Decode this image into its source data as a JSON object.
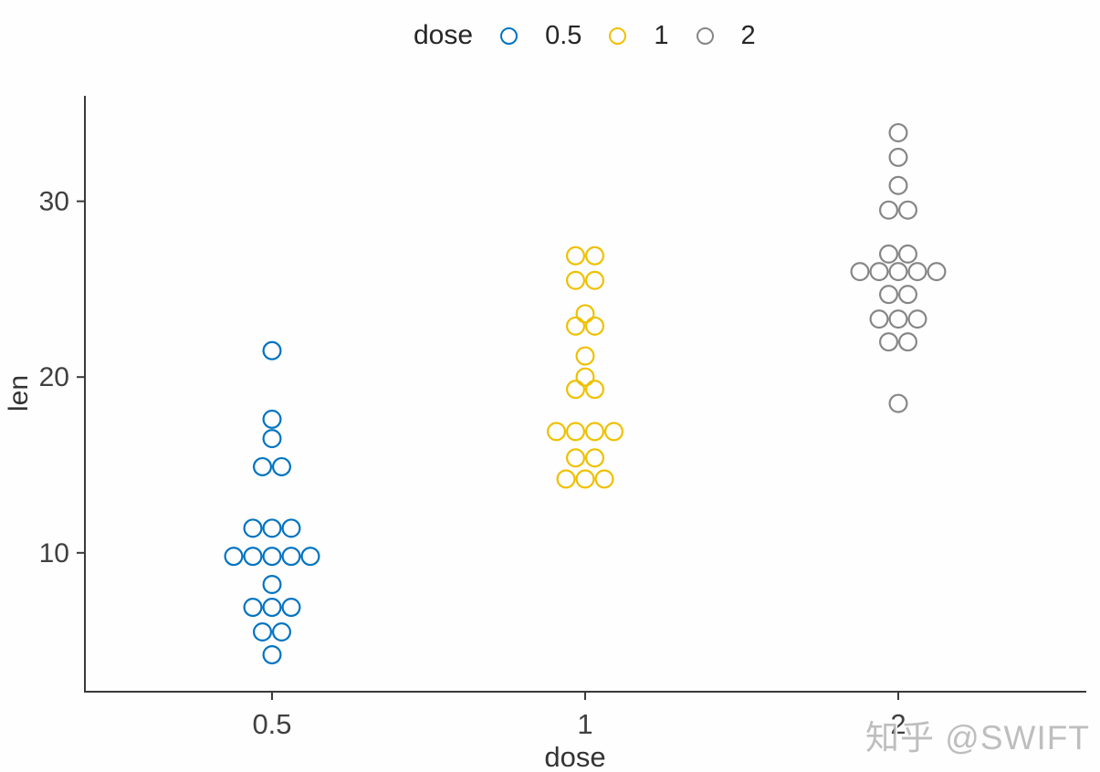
{
  "watermark": "知乎 @SWIFT",
  "legend": {
    "title": "dose",
    "items": [
      {
        "label": "0.5",
        "color": "#0073C2"
      },
      {
        "label": "1",
        "color": "#EFC000"
      },
      {
        "label": "2",
        "color": "#868686"
      }
    ]
  },
  "axes": {
    "x_label": "dose",
    "y_label": "len",
    "x_tick_labels": [
      "0.5",
      "1",
      "2"
    ],
    "y_tick_labels": [
      "10",
      "20",
      "30"
    ]
  },
  "chart_data": {
    "type": "scatter",
    "subtype": "centered-dotplot",
    "title": "",
    "xlabel": "dose",
    "ylabel": "len",
    "categories": [
      "0.5",
      "1",
      "2"
    ],
    "y_ticks": [
      10,
      20,
      30
    ],
    "ylim": [
      2.1,
      36.0
    ],
    "grid": false,
    "legend_position": "top",
    "series": [
      {
        "name": "0.5",
        "color": "#0073C2",
        "stacks": [
          {
            "value": 21.5,
            "count": 1
          },
          {
            "value": 17.6,
            "count": 1
          },
          {
            "value": 16.5,
            "count": 1
          },
          {
            "value": 14.9,
            "count": 2
          },
          {
            "value": 11.4,
            "count": 3
          },
          {
            "value": 9.8,
            "count": 5
          },
          {
            "value": 8.2,
            "count": 1
          },
          {
            "value": 6.9,
            "count": 3
          },
          {
            "value": 5.5,
            "count": 2
          },
          {
            "value": 4.2,
            "count": 1
          }
        ]
      },
      {
        "name": "1",
        "color": "#EFC000",
        "stacks": [
          {
            "value": 26.9,
            "count": 2
          },
          {
            "value": 25.5,
            "count": 2
          },
          {
            "value": 23.6,
            "count": 1
          },
          {
            "value": 22.9,
            "count": 2
          },
          {
            "value": 21.2,
            "count": 1
          },
          {
            "value": 20.0,
            "count": 1
          },
          {
            "value": 19.3,
            "count": 2
          },
          {
            "value": 16.9,
            "count": 4
          },
          {
            "value": 15.4,
            "count": 2
          },
          {
            "value": 14.2,
            "count": 3
          }
        ]
      },
      {
        "name": "2",
        "color": "#868686",
        "stacks": [
          {
            "value": 33.9,
            "count": 1
          },
          {
            "value": 32.5,
            "count": 1
          },
          {
            "value": 30.9,
            "count": 1
          },
          {
            "value": 29.5,
            "count": 2
          },
          {
            "value": 27.0,
            "count": 2
          },
          {
            "value": 26.0,
            "count": 5
          },
          {
            "value": 24.7,
            "count": 2
          },
          {
            "value": 23.3,
            "count": 3
          },
          {
            "value": 22.0,
            "count": 2
          },
          {
            "value": 18.5,
            "count": 1
          }
        ]
      }
    ]
  }
}
